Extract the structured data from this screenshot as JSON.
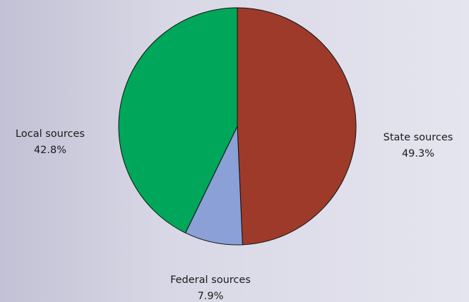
{
  "chart_data": {
    "type": "pie",
    "start_angle_deg": 0,
    "direction": "clockwise",
    "slices": [
      {
        "label": "State sources",
        "value": 49.3,
        "value_label": "49.3%",
        "color": "#9e3a2a"
      },
      {
        "label": "Federal sources",
        "value": 7.9,
        "value_label": "7.9%",
        "color": "#8aa0d6"
      },
      {
        "label": "Local sources",
        "value": 42.8,
        "value_label": "42.8%",
        "color": "#00a65a"
      }
    ],
    "outline_color": "#111111",
    "background": "#d8d7e5"
  }
}
